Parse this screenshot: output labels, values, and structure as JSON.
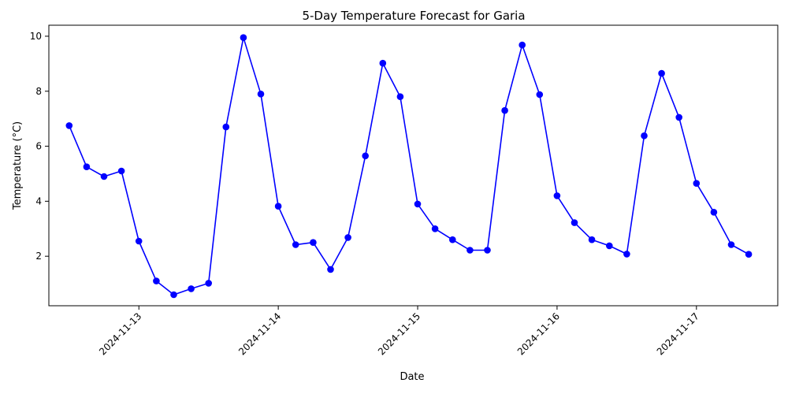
{
  "chart_data": {
    "type": "line",
    "title": "5-Day Temperature Forecast for Garia",
    "xlabel": "Date",
    "ylabel": "Temperature (°C)",
    "x_ticks": [
      "2024-11-13",
      "2024-11-14",
      "2024-11-15",
      "2024-11-16",
      "2024-11-17"
    ],
    "y_ticks": [
      "2",
      "4",
      "6",
      "8",
      "10"
    ],
    "ylim": [
      0.2,
      10.4
    ],
    "xlim": [
      "2024-11-12 08:30",
      "2024-11-17 14:00"
    ],
    "grid": false,
    "series_color": "#0000ff",
    "series": [
      {
        "marker": "circle",
        "points": [
          {
            "x": "2024-11-12 12:00",
            "y": 6.75
          },
          {
            "x": "2024-11-12 15:00",
            "y": 5.25
          },
          {
            "x": "2024-11-12 18:00",
            "y": 4.9
          },
          {
            "x": "2024-11-12 21:00",
            "y": 5.1
          },
          {
            "x": "2024-11-13 00:00",
            "y": 2.55
          },
          {
            "x": "2024-11-13 03:00",
            "y": 1.1
          },
          {
            "x": "2024-11-13 06:00",
            "y": 0.6
          },
          {
            "x": "2024-11-13 09:00",
            "y": 0.82
          },
          {
            "x": "2024-11-13 12:00",
            "y": 1.02
          },
          {
            "x": "2024-11-13 15:00",
            "y": 6.7
          },
          {
            "x": "2024-11-13 18:00",
            "y": 9.95
          },
          {
            "x": "2024-11-13 21:00",
            "y": 7.9
          },
          {
            "x": "2024-11-14 00:00",
            "y": 3.82
          },
          {
            "x": "2024-11-14 03:00",
            "y": 2.42
          },
          {
            "x": "2024-11-14 06:00",
            "y": 2.5
          },
          {
            "x": "2024-11-14 09:00",
            "y": 1.52
          },
          {
            "x": "2024-11-14 12:00",
            "y": 2.68
          },
          {
            "x": "2024-11-14 15:00",
            "y": 5.65
          },
          {
            "x": "2024-11-14 18:00",
            "y": 9.02
          },
          {
            "x": "2024-11-14 21:00",
            "y": 7.8
          },
          {
            "x": "2024-11-15 00:00",
            "y": 3.9
          },
          {
            "x": "2024-11-15 03:00",
            "y": 3.0
          },
          {
            "x": "2024-11-15 06:00",
            "y": 2.6
          },
          {
            "x": "2024-11-15 09:00",
            "y": 2.22
          },
          {
            "x": "2024-11-15 12:00",
            "y": 2.22
          },
          {
            "x": "2024-11-15 15:00",
            "y": 7.3
          },
          {
            "x": "2024-11-15 18:00",
            "y": 9.68
          },
          {
            "x": "2024-11-15 21:00",
            "y": 7.88
          },
          {
            "x": "2024-11-16 00:00",
            "y": 4.2
          },
          {
            "x": "2024-11-16 03:00",
            "y": 3.22
          },
          {
            "x": "2024-11-16 06:00",
            "y": 2.6
          },
          {
            "x": "2024-11-16 09:00",
            "y": 2.38
          },
          {
            "x": "2024-11-16 12:00",
            "y": 2.08
          },
          {
            "x": "2024-11-16 15:00",
            "y": 6.38
          },
          {
            "x": "2024-11-16 18:00",
            "y": 8.65
          },
          {
            "x": "2024-11-16 21:00",
            "y": 7.05
          },
          {
            "x": "2024-11-17 00:00",
            "y": 4.65
          },
          {
            "x": "2024-11-17 03:00",
            "y": 3.6
          },
          {
            "x": "2024-11-17 06:00",
            "y": 2.42
          },
          {
            "x": "2024-11-17 09:00",
            "y": 2.07
          }
        ]
      }
    ]
  }
}
